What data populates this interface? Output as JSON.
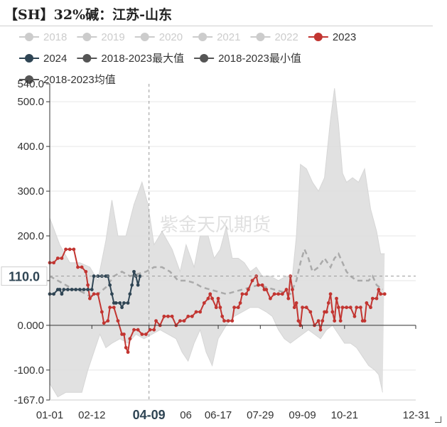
{
  "page": {
    "title": "【SH】32%碱：江苏-山东"
  },
  "legend": [
    {
      "name": "2018",
      "color": "#cccccc",
      "active": false
    },
    {
      "name": "2019",
      "color": "#cccccc",
      "active": false
    },
    {
      "name": "2020",
      "color": "#cccccc",
      "active": false
    },
    {
      "name": "2021",
      "color": "#cccccc",
      "active": false
    },
    {
      "name": "2022",
      "color": "#cccccc",
      "active": false
    },
    {
      "name": "2023",
      "color": "#c23531",
      "active": true
    },
    {
      "name": "2024",
      "color": "#2f4554",
      "active": true
    },
    {
      "name": "2018-2023最大值",
      "color": "#555555",
      "active": true
    },
    {
      "name": "2018-2023最小值",
      "color": "#555555",
      "active": true
    },
    {
      "name": "2018-2023均值",
      "color": "#555555",
      "active": true
    }
  ],
  "chart_data": {
    "type": "line",
    "x_ticks": [
      "01-01",
      "02-12",
      "04-09",
      "06-17",
      "07-29",
      "09-09",
      "10-21",
      "12-31"
    ],
    "x_tick_partial": "06",
    "x_tick_days": [
      0,
      42,
      99,
      168,
      210,
      252,
      294,
      365
    ],
    "y_ticks": [
      "540.0",
      "500.0",
      "400.0",
      "300.0",
      "200.0",
      "100.0",
      "0.000",
      "-100.0",
      "-167.0"
    ],
    "ylim": [
      -167,
      540
    ],
    "pointer": {
      "day": 99,
      "x_label": "04-09",
      "y_label": "110.0"
    },
    "series": [
      {
        "name": "2023",
        "color": "#c23531",
        "points": [
          [
            0,
            140
          ],
          [
            4,
            140
          ],
          [
            8,
            150
          ],
          [
            12,
            150
          ],
          [
            16,
            170
          ],
          [
            20,
            170
          ],
          [
            24,
            170
          ],
          [
            28,
            130
          ],
          [
            32,
            130
          ],
          [
            36,
            120
          ],
          [
            38,
            90
          ],
          [
            40,
            60
          ],
          [
            44,
            70
          ],
          [
            48,
            70
          ],
          [
            52,
            30
          ],
          [
            54,
            5
          ],
          [
            58,
            10
          ],
          [
            60,
            40
          ],
          [
            64,
            40
          ],
          [
            68,
            10
          ],
          [
            72,
            -20
          ],
          [
            74,
            -20
          ],
          [
            76,
            -50
          ],
          [
            78,
            -60
          ],
          [
            80,
            -30
          ],
          [
            84,
            -10
          ],
          [
            88,
            -10
          ],
          [
            92,
            -20
          ],
          [
            96,
            -20
          ],
          [
            100,
            -10
          ],
          [
            104,
            -10
          ],
          [
            106,
            10
          ],
          [
            110,
            0
          ],
          [
            114,
            20
          ],
          [
            118,
            20
          ],
          [
            122,
            20
          ],
          [
            126,
            0
          ],
          [
            130,
            10
          ],
          [
            134,
            10
          ],
          [
            138,
            20
          ],
          [
            142,
            20
          ],
          [
            146,
            30
          ],
          [
            150,
            30
          ],
          [
            154,
            50
          ],
          [
            158,
            60
          ],
          [
            160,
            70
          ],
          [
            162,
            60
          ],
          [
            166,
            40
          ],
          [
            168,
            60
          ],
          [
            170,
            40
          ],
          [
            172,
            20
          ],
          [
            174,
            10
          ],
          [
            178,
            10
          ],
          [
            182,
            10
          ],
          [
            184,
            40
          ],
          [
            188,
            40
          ],
          [
            190,
            50
          ],
          [
            192,
            70
          ],
          [
            196,
            70
          ],
          [
            198,
            80
          ],
          [
            202,
            100
          ],
          [
            206,
            110
          ],
          [
            208,
            90
          ],
          [
            212,
            90
          ],
          [
            214,
            80
          ],
          [
            216,
            80
          ],
          [
            220,
            60
          ],
          [
            224,
            70
          ],
          [
            228,
            70
          ],
          [
            232,
            70
          ],
          [
            236,
            80
          ],
          [
            238,
            60
          ],
          [
            240,
            110
          ],
          [
            242,
            80
          ],
          [
            244,
            40
          ],
          [
            246,
            50
          ],
          [
            248,
            10
          ],
          [
            250,
            0
          ],
          [
            252,
            40
          ],
          [
            256,
            40
          ],
          [
            260,
            30
          ],
          [
            264,
            0
          ],
          [
            268,
            10
          ],
          [
            270,
            -10
          ],
          [
            272,
            10
          ],
          [
            274,
            30
          ],
          [
            276,
            30
          ],
          [
            278,
            50
          ],
          [
            280,
            70
          ],
          [
            282,
            30
          ],
          [
            284,
            10
          ],
          [
            286,
            60
          ],
          [
            288,
            40
          ],
          [
            290,
            10
          ],
          [
            292,
            40
          ],
          [
            296,
            40
          ],
          [
            300,
            40
          ],
          [
            304,
            20
          ],
          [
            306,
            40
          ],
          [
            310,
            40
          ],
          [
            312,
            10
          ],
          [
            314,
            10
          ],
          [
            316,
            50
          ],
          [
            320,
            40
          ],
          [
            322,
            60
          ],
          [
            326,
            60
          ],
          [
            328,
            80
          ],
          [
            330,
            70
          ],
          [
            334,
            70
          ]
        ]
      },
      {
        "name": "2024",
        "color": "#2f4554",
        "points": [
          [
            0,
            70
          ],
          [
            4,
            70
          ],
          [
            8,
            80
          ],
          [
            10,
            80
          ],
          [
            12,
            70
          ],
          [
            14,
            80
          ],
          [
            18,
            80
          ],
          [
            22,
            80
          ],
          [
            26,
            80
          ],
          [
            30,
            80
          ],
          [
            34,
            80
          ],
          [
            38,
            80
          ],
          [
            42,
            80
          ],
          [
            44,
            110
          ],
          [
            48,
            110
          ],
          [
            52,
            110
          ],
          [
            56,
            110
          ],
          [
            58,
            110
          ],
          [
            60,
            90
          ],
          [
            62,
            70
          ],
          [
            64,
            50
          ],
          [
            66,
            50
          ],
          [
            70,
            50
          ],
          [
            72,
            40
          ],
          [
            74,
            50
          ],
          [
            78,
            50
          ],
          [
            80,
            70
          ],
          [
            82,
            90
          ],
          [
            84,
            120
          ],
          [
            86,
            110
          ],
          [
            88,
            90
          ],
          [
            90,
            110
          ]
        ]
      },
      {
        "name": "2018-2023最大值",
        "color": "#d6d6d6",
        "points": [
          [
            0,
            240
          ],
          [
            10,
            180
          ],
          [
            20,
            140
          ],
          [
            30,
            140
          ],
          [
            40,
            130
          ],
          [
            48,
            100
          ],
          [
            56,
            190
          ],
          [
            62,
            280
          ],
          [
            68,
            200
          ],
          [
            76,
            200
          ],
          [
            84,
            270
          ],
          [
            92,
            320
          ],
          [
            98,
            270
          ],
          [
            104,
            180
          ],
          [
            112,
            210
          ],
          [
            122,
            170
          ],
          [
            130,
            120
          ],
          [
            136,
            180
          ],
          [
            144,
            130
          ],
          [
            150,
            200
          ],
          [
            158,
            200
          ],
          [
            164,
            150
          ],
          [
            170,
            170
          ],
          [
            176,
            220
          ],
          [
            182,
            150
          ],
          [
            188,
            150
          ],
          [
            194,
            140
          ],
          [
            200,
            120
          ],
          [
            206,
            130
          ],
          [
            212,
            110
          ],
          [
            220,
            110
          ],
          [
            228,
            100
          ],
          [
            236,
            110
          ],
          [
            242,
            110
          ],
          [
            246,
            200
          ],
          [
            250,
            360
          ],
          [
            256,
            350
          ],
          [
            262,
            320
          ],
          [
            268,
            300
          ],
          [
            274,
            330
          ],
          [
            280,
            460
          ],
          [
            284,
            530
          ],
          [
            288,
            450
          ],
          [
            292,
            340
          ],
          [
            296,
            320
          ],
          [
            302,
            330
          ],
          [
            308,
            320
          ],
          [
            314,
            350
          ],
          [
            320,
            260
          ],
          [
            326,
            210
          ],
          [
            330,
            160
          ],
          [
            334,
            160
          ]
        ]
      },
      {
        "name": "2018-2023最小值",
        "color": "#d6d6d6",
        "points": [
          [
            0,
            -130
          ],
          [
            8,
            -160
          ],
          [
            16,
            -150
          ],
          [
            24,
            -150
          ],
          [
            32,
            -150
          ],
          [
            38,
            -100
          ],
          [
            44,
            -60
          ],
          [
            50,
            -20
          ],
          [
            56,
            -50
          ],
          [
            62,
            -40
          ],
          [
            70,
            -30
          ],
          [
            78,
            -40
          ],
          [
            86,
            -20
          ],
          [
            94,
            -30
          ],
          [
            102,
            -20
          ],
          [
            110,
            -10
          ],
          [
            118,
            -20
          ],
          [
            126,
            -30
          ],
          [
            132,
            -60
          ],
          [
            138,
            -80
          ],
          [
            144,
            -40
          ],
          [
            150,
            -10
          ],
          [
            156,
            -60
          ],
          [
            162,
            -90
          ],
          [
            168,
            -30
          ],
          [
            176,
            0
          ],
          [
            184,
            20
          ],
          [
            192,
            30
          ],
          [
            200,
            40
          ],
          [
            208,
            40
          ],
          [
            216,
            30
          ],
          [
            222,
            20
          ],
          [
            228,
            -10
          ],
          [
            234,
            -30
          ],
          [
            240,
            -40
          ],
          [
            246,
            -30
          ],
          [
            252,
            -20
          ],
          [
            258,
            -10
          ],
          [
            264,
            -20
          ],
          [
            270,
            -30
          ],
          [
            276,
            -10
          ],
          [
            282,
            0
          ],
          [
            288,
            -20
          ],
          [
            294,
            -40
          ],
          [
            300,
            -40
          ],
          [
            306,
            -50
          ],
          [
            312,
            -70
          ],
          [
            318,
            -90
          ],
          [
            324,
            -100
          ],
          [
            328,
            -110
          ],
          [
            332,
            -150
          ]
        ]
      },
      {
        "name": "2018-2023均值",
        "color": "#aaaaaa",
        "dashed": true,
        "points": [
          [
            0,
            110
          ],
          [
            8,
            100
          ],
          [
            16,
            90
          ],
          [
            24,
            80
          ],
          [
            32,
            75
          ],
          [
            40,
            65
          ],
          [
            48,
            70
          ],
          [
            56,
            85
          ],
          [
            64,
            110
          ],
          [
            72,
            120
          ],
          [
            80,
            110
          ],
          [
            88,
            115
          ],
          [
            96,
            120
          ],
          [
            104,
            130
          ],
          [
            112,
            130
          ],
          [
            120,
            120
          ],
          [
            128,
            100
          ],
          [
            136,
            100
          ],
          [
            144,
            95
          ],
          [
            152,
            85
          ],
          [
            160,
            80
          ],
          [
            168,
            75
          ],
          [
            176,
            70
          ],
          [
            184,
            75
          ],
          [
            192,
            80
          ],
          [
            200,
            85
          ],
          [
            208,
            90
          ],
          [
            216,
            85
          ],
          [
            224,
            80
          ],
          [
            232,
            75
          ],
          [
            240,
            70
          ],
          [
            246,
            100
          ],
          [
            250,
            140
          ],
          [
            254,
            170
          ],
          [
            258,
            150
          ],
          [
            262,
            120
          ],
          [
            268,
            130
          ],
          [
            274,
            150
          ],
          [
            280,
            130
          ],
          [
            284,
            150
          ],
          [
            288,
            160
          ],
          [
            292,
            140
          ],
          [
            296,
            120
          ],
          [
            300,
            110
          ],
          [
            306,
            100
          ],
          [
            312,
            100
          ],
          [
            318,
            100
          ],
          [
            322,
            110
          ],
          [
            326,
            90
          ],
          [
            332,
            80
          ]
        ]
      }
    ]
  }
}
